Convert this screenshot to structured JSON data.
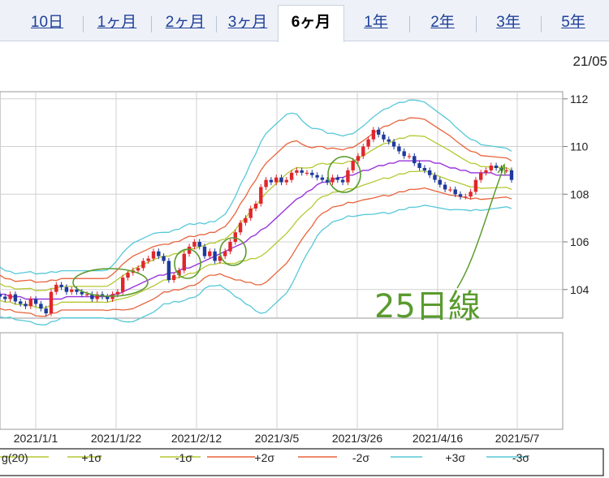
{
  "tabs": [
    {
      "label": "10日",
      "active": false
    },
    {
      "label": "1ヶ月",
      "active": false
    },
    {
      "label": "2ヶ月",
      "active": false
    },
    {
      "label": "3ヶ月",
      "active": false
    },
    {
      "label": "6ヶ月",
      "active": true
    },
    {
      "label": "1年",
      "active": false
    },
    {
      "label": "2年",
      "active": false
    },
    {
      "label": "3年",
      "active": false
    },
    {
      "label": "5年",
      "active": false
    }
  ],
  "chart_data": {
    "type": "candlestick",
    "date_stamp": "21/05",
    "x_tick_labels": [
      "2021/1/1",
      "2021/1/22",
      "2021/2/12",
      "2021/3/5",
      "2021/3/26",
      "2021/4/16",
      "2021/5/7"
    ],
    "y_ticks": [
      104,
      106,
      108,
      110,
      112
    ],
    "ylim": [
      102.8,
      112.3
    ],
    "annotation": "25日線",
    "legend": [
      {
        "label": "g(20)",
        "color": "#b5c832"
      },
      {
        "label": "+1σ",
        "color": "#b5c832"
      },
      {
        "label": "-1σ",
        "color": "#b5c832"
      },
      {
        "label": "+2σ",
        "color": "#e8643c"
      },
      {
        "label": "-2σ",
        "color": "#e8643c"
      },
      {
        "label": "+3σ",
        "color": "#56c8d8"
      },
      {
        "label": "-3σ",
        "color": "#56c8d8"
      }
    ],
    "colors": {
      "up": "#e0262b",
      "down": "#1d3a9c",
      "ma20": "#b5c832",
      "s2": "#e8643c",
      "s3": "#56c8d8",
      "ma25": "#9933dd",
      "circle": "#5a9b2e",
      "annotation": "#5a9b2e"
    },
    "closes": [
      103.7,
      103.6,
      103.8,
      103.5,
      103.4,
      103.3,
      103.6,
      103.4,
      103.2,
      103.0,
      103.9,
      104.2,
      104.1,
      103.9,
      104.0,
      103.9,
      103.8,
      103.8,
      103.6,
      103.8,
      103.7,
      103.6,
      103.8,
      103.9,
      104.5,
      104.7,
      104.8,
      104.9,
      105.2,
      105.3,
      105.6,
      105.4,
      105.2,
      104.4,
      104.6,
      104.8,
      105.5,
      105.8,
      106.0,
      105.8,
      105.4,
      105.6,
      105.2,
      105.4,
      105.6,
      106.0,
      106.4,
      106.8,
      107.0,
      107.4,
      107.6,
      108.3,
      108.6,
      108.5,
      108.7,
      108.5,
      108.6,
      108.9,
      109.0,
      108.9,
      108.9,
      108.8,
      108.7,
      108.6,
      108.5,
      108.7,
      108.6,
      108.5,
      109.0,
      109.4,
      109.6,
      110.0,
      110.3,
      110.7,
      110.5,
      110.3,
      110.2,
      110.0,
      109.8,
      109.6,
      109.6,
      109.3,
      109.1,
      109.0,
      108.8,
      108.6,
      108.4,
      108.2,
      108.2,
      108.0,
      107.9,
      107.9,
      108.1,
      108.6,
      108.9,
      109.0,
      109.2,
      109.1,
      109.0,
      109.0,
      108.6
    ],
    "ma20_line": [
      103.9,
      103.8,
      103.8,
      103.7,
      103.7,
      103.7,
      103.7,
      103.6,
      103.6,
      103.6,
      103.7,
      103.7,
      103.8,
      103.8,
      103.8,
      103.8,
      103.8,
      103.8,
      103.8,
      103.8,
      103.8,
      103.8,
      103.9,
      104.0,
      104.1,
      104.2,
      104.3,
      104.4,
      104.5,
      104.6,
      104.7,
      104.8,
      104.9,
      104.9,
      105.0,
      105.0,
      105.1,
      105.2,
      105.2,
      105.3,
      105.4,
      105.5,
      105.5,
      105.6,
      105.6,
      105.7,
      105.8,
      106.0,
      106.1,
      106.3,
      106.4,
      106.6,
      106.8,
      107.0,
      107.2,
      107.4,
      107.6,
      107.8,
      108.0,
      108.1,
      108.2,
      108.3,
      108.5,
      108.6,
      108.6,
      108.7,
      108.7,
      108.7,
      108.8,
      108.8,
      108.9,
      109.0,
      109.1,
      109.2,
      109.3,
      109.4,
      109.4,
      109.5,
      109.6,
      109.6,
      109.7,
      109.7,
      109.7,
      109.7,
      109.6,
      109.5,
      109.4,
      109.3,
      109.2,
      109.1,
      109.0,
      108.9,
      108.8,
      108.8,
      108.7,
      108.7,
      108.7,
      108.7,
      108.7,
      108.7,
      108.6
    ],
    "sigma": [
      0.35,
      0.33,
      0.32,
      0.32,
      0.33,
      0.34,
      0.35,
      0.35,
      0.36,
      0.36,
      0.35,
      0.34,
      0.33,
      0.33,
      0.33,
      0.33,
      0.33,
      0.33,
      0.33,
      0.33,
      0.33,
      0.34,
      0.37,
      0.42,
      0.48,
      0.52,
      0.55,
      0.55,
      0.55,
      0.55,
      0.55,
      0.53,
      0.5,
      0.5,
      0.5,
      0.51,
      0.52,
      0.52,
      0.51,
      0.5,
      0.45,
      0.45,
      0.45,
      0.47,
      0.52,
      0.6,
      0.7,
      0.8,
      0.9,
      1.0,
      1.1,
      1.2,
      1.25,
      1.25,
      1.25,
      1.25,
      1.25,
      1.2,
      1.12,
      1.0,
      0.9,
      0.82,
      0.75,
      0.7,
      0.65,
      0.62,
      0.6,
      0.58,
      0.57,
      0.58,
      0.6,
      0.62,
      0.65,
      0.68,
      0.7,
      0.72,
      0.74,
      0.75,
      0.75,
      0.75,
      0.75,
      0.75,
      0.74,
      0.72,
      0.7,
      0.68,
      0.66,
      0.64,
      0.62,
      0.58,
      0.55,
      0.52,
      0.5,
      0.48,
      0.46,
      0.45,
      0.44,
      0.43,
      0.42,
      0.41,
      0.4
    ],
    "ma25_line": [
      103.8,
      103.8,
      103.7,
      103.7,
      103.7,
      103.6,
      103.6,
      103.6,
      103.6,
      103.6,
      103.6,
      103.6,
      103.6,
      103.7,
      103.7,
      103.7,
      103.7,
      103.7,
      103.7,
      103.7,
      103.7,
      103.7,
      103.8,
      103.8,
      103.9,
      104.0,
      104.1,
      104.2,
      104.3,
      104.4,
      104.5,
      104.6,
      104.6,
      104.7,
      104.7,
      104.8,
      104.9,
      104.9,
      105.0,
      105.1,
      105.2,
      105.3,
      105.4,
      105.5,
      105.6,
      105.7,
      105.8,
      105.9,
      106.0,
      106.2,
      106.3,
      106.5,
      106.6,
      106.8,
      107.0,
      107.2,
      107.4,
      107.6,
      107.8,
      107.9,
      108.1,
      108.2,
      108.4,
      108.5,
      108.5,
      108.6,
      108.7,
      108.7,
      108.8,
      108.8,
      108.9,
      109.0,
      109.0,
      109.1,
      109.2,
      109.2,
      109.3,
      109.3,
      109.4,
      109.4,
      109.4,
      109.4,
      109.4,
      109.4,
      109.4,
      109.3,
      109.3,
      109.2,
      109.1,
      109.1,
      109.0,
      109.0,
      108.9,
      108.9,
      108.9,
      108.9,
      108.9,
      108.8,
      108.8,
      108.8,
      108.8
    ]
  }
}
